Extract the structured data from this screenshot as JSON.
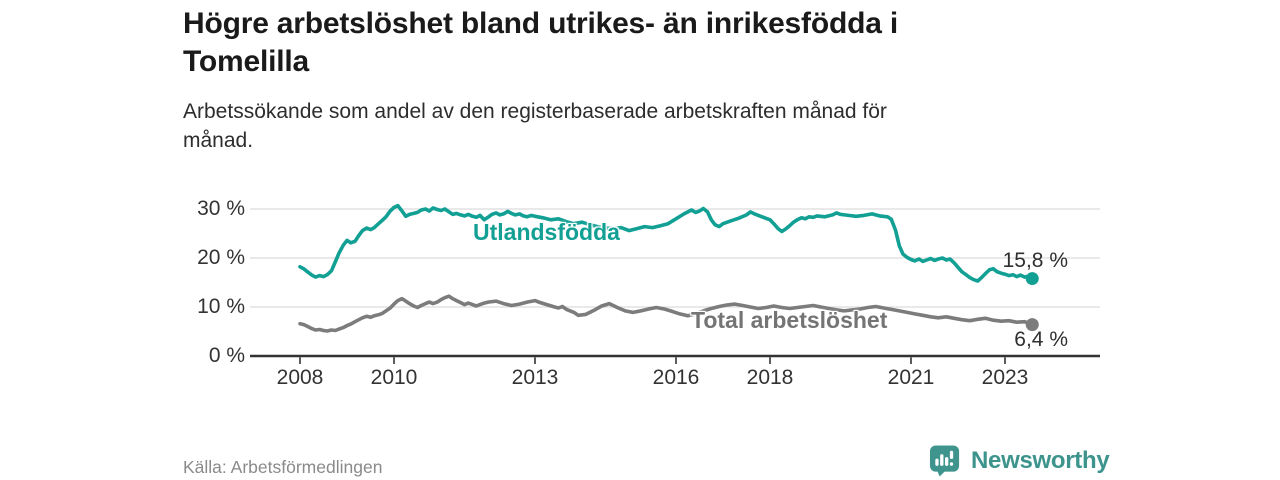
{
  "header": {
    "title_lines": [
      "Högre arbetslöshet bland utrikes- än inrikesfödda i",
      "Tomelilla"
    ],
    "subtitle_lines": [
      "Arbetssökande som andel av den registerbaserade arbetskraften månad för",
      "månad."
    ]
  },
  "footer": {
    "source": "Källa: Arbetsförmedlingen",
    "brand": "Newsworthy",
    "brand_icon": "newsworthy-bar-chart-speech-bubble"
  },
  "colors": {
    "accent_teal": "#12a095",
    "series_gray": "#7c7c7c",
    "logo_teal": "#3f948e",
    "grid": "#dcdcdc",
    "axis": "#333333",
    "text_dark": "#1a1a1a"
  },
  "chart_data": {
    "type": "line",
    "title": "Högre arbetslöshet bland utrikes- än inrikesfödda i Tomelilla",
    "subtitle": "Arbetssökande som andel av den registerbaserade arbetskraften månad för månad.",
    "grid": true,
    "legend_position": "inline-labels",
    "x_axis": {
      "ticks": [
        2008,
        2010,
        2013,
        2016,
        2018,
        2021,
        2023
      ],
      "range_years": [
        2006.9,
        2025.0
      ]
    },
    "y_axis": {
      "unit": "%",
      "ylim": [
        0,
        32
      ],
      "ticks": [
        {
          "value": 0,
          "label": "0 %"
        },
        {
          "value": 10,
          "label": "10 %"
        },
        {
          "value": 20,
          "label": "20 %"
        },
        {
          "value": 30,
          "label": "30 %"
        }
      ]
    },
    "series": [
      {
        "name": "Utlandsfödda",
        "color": "#12a095",
        "end_label": "15,8 %",
        "last_value": 15.8,
        "points": [
          [
            2008.0,
            18.2
          ],
          [
            2008.08,
            17.8
          ],
          [
            2008.17,
            17.1
          ],
          [
            2008.25,
            16.5
          ],
          [
            2008.33,
            16.1
          ],
          [
            2008.42,
            16.4
          ],
          [
            2008.5,
            16.2
          ],
          [
            2008.58,
            16.6
          ],
          [
            2008.67,
            17.4
          ],
          [
            2008.75,
            19.2
          ],
          [
            2008.83,
            21.0
          ],
          [
            2008.92,
            22.6
          ],
          [
            2009.0,
            23.6
          ],
          [
            2009.08,
            23.1
          ],
          [
            2009.17,
            23.4
          ],
          [
            2009.25,
            24.6
          ],
          [
            2009.33,
            25.6
          ],
          [
            2009.42,
            26.1
          ],
          [
            2009.5,
            25.8
          ],
          [
            2009.58,
            26.2
          ],
          [
            2009.67,
            27.0
          ],
          [
            2009.75,
            27.7
          ],
          [
            2009.83,
            28.4
          ],
          [
            2009.92,
            29.6
          ],
          [
            2010.0,
            30.3
          ],
          [
            2010.08,
            30.7
          ],
          [
            2010.17,
            29.6
          ],
          [
            2010.25,
            28.5
          ],
          [
            2010.33,
            28.9
          ],
          [
            2010.42,
            29.1
          ],
          [
            2010.5,
            29.3
          ],
          [
            2010.58,
            29.8
          ],
          [
            2010.67,
            30.0
          ],
          [
            2010.75,
            29.6
          ],
          [
            2010.83,
            30.2
          ],
          [
            2010.92,
            29.9
          ],
          [
            2011.0,
            29.7
          ],
          [
            2011.08,
            30.0
          ],
          [
            2011.17,
            29.4
          ],
          [
            2011.25,
            28.9
          ],
          [
            2011.33,
            29.1
          ],
          [
            2011.42,
            28.8
          ],
          [
            2011.5,
            28.6
          ],
          [
            2011.58,
            28.9
          ],
          [
            2011.67,
            28.5
          ],
          [
            2011.75,
            28.3
          ],
          [
            2011.83,
            28.7
          ],
          [
            2011.92,
            27.8
          ],
          [
            2012.0,
            28.3
          ],
          [
            2012.08,
            28.9
          ],
          [
            2012.17,
            29.2
          ],
          [
            2012.25,
            28.8
          ],
          [
            2012.33,
            29.0
          ],
          [
            2012.42,
            29.5
          ],
          [
            2012.5,
            29.1
          ],
          [
            2012.58,
            28.8
          ],
          [
            2012.67,
            29.0
          ],
          [
            2012.75,
            28.6
          ],
          [
            2012.83,
            28.4
          ],
          [
            2012.92,
            28.7
          ],
          [
            2013.0,
            28.5
          ],
          [
            2013.17,
            28.2
          ],
          [
            2013.33,
            27.8
          ],
          [
            2013.5,
            28.0
          ],
          [
            2013.67,
            27.4
          ],
          [
            2013.83,
            27.0
          ],
          [
            2014.0,
            27.3
          ],
          [
            2014.17,
            26.8
          ],
          [
            2014.33,
            26.4
          ],
          [
            2014.5,
            26.1
          ],
          [
            2014.67,
            26.0
          ],
          [
            2014.83,
            26.2
          ],
          [
            2015.0,
            25.6
          ],
          [
            2015.17,
            26.0
          ],
          [
            2015.33,
            26.4
          ],
          [
            2015.5,
            26.2
          ],
          [
            2015.67,
            26.6
          ],
          [
            2015.83,
            27.0
          ],
          [
            2016.0,
            28.0
          ],
          [
            2016.17,
            29.0
          ],
          [
            2016.33,
            29.8
          ],
          [
            2016.42,
            29.3
          ],
          [
            2016.5,
            29.6
          ],
          [
            2016.58,
            30.1
          ],
          [
            2016.67,
            29.4
          ],
          [
            2016.75,
            27.8
          ],
          [
            2016.83,
            26.8
          ],
          [
            2016.92,
            26.4
          ],
          [
            2017.0,
            27.0
          ],
          [
            2017.17,
            27.6
          ],
          [
            2017.33,
            28.1
          ],
          [
            2017.5,
            28.8
          ],
          [
            2017.58,
            29.4
          ],
          [
            2017.67,
            29.0
          ],
          [
            2017.83,
            28.4
          ],
          [
            2018.0,
            27.8
          ],
          [
            2018.08,
            27.0
          ],
          [
            2018.17,
            26.0
          ],
          [
            2018.25,
            25.4
          ],
          [
            2018.33,
            25.9
          ],
          [
            2018.42,
            26.6
          ],
          [
            2018.5,
            27.3
          ],
          [
            2018.58,
            27.8
          ],
          [
            2018.67,
            28.2
          ],
          [
            2018.75,
            28.0
          ],
          [
            2018.83,
            28.4
          ],
          [
            2018.92,
            28.3
          ],
          [
            2019.0,
            28.6
          ],
          [
            2019.17,
            28.4
          ],
          [
            2019.33,
            28.8
          ],
          [
            2019.42,
            29.2
          ],
          [
            2019.5,
            28.9
          ],
          [
            2019.67,
            28.7
          ],
          [
            2019.83,
            28.5
          ],
          [
            2020.0,
            28.7
          ],
          [
            2020.17,
            29.0
          ],
          [
            2020.33,
            28.6
          ],
          [
            2020.5,
            28.4
          ],
          [
            2020.58,
            27.9
          ],
          [
            2020.67,
            25.7
          ],
          [
            2020.75,
            22.5
          ],
          [
            2020.83,
            20.8
          ],
          [
            2020.92,
            20.1
          ],
          [
            2021.0,
            19.7
          ],
          [
            2021.08,
            19.4
          ],
          [
            2021.17,
            19.8
          ],
          [
            2021.25,
            19.3
          ],
          [
            2021.33,
            19.6
          ],
          [
            2021.42,
            19.9
          ],
          [
            2021.5,
            19.5
          ],
          [
            2021.58,
            19.8
          ],
          [
            2021.67,
            20.0
          ],
          [
            2021.75,
            19.6
          ],
          [
            2021.83,
            19.8
          ],
          [
            2021.92,
            19.0
          ],
          [
            2022.0,
            18.1
          ],
          [
            2022.08,
            17.2
          ],
          [
            2022.17,
            16.6
          ],
          [
            2022.25,
            16.0
          ],
          [
            2022.33,
            15.6
          ],
          [
            2022.42,
            15.3
          ],
          [
            2022.5,
            16.0
          ],
          [
            2022.58,
            16.8
          ],
          [
            2022.67,
            17.6
          ],
          [
            2022.75,
            17.8
          ],
          [
            2022.83,
            17.2
          ],
          [
            2022.92,
            16.9
          ],
          [
            2023.0,
            16.7
          ],
          [
            2023.08,
            16.4
          ],
          [
            2023.17,
            16.6
          ],
          [
            2023.25,
            16.2
          ],
          [
            2023.33,
            16.5
          ],
          [
            2023.42,
            16.1
          ],
          [
            2023.5,
            16.3
          ],
          [
            2023.58,
            15.8
          ]
        ]
      },
      {
        "name": "Total arbetslöshet",
        "color": "#7c7c7c",
        "end_label": "6,4 %",
        "last_value": 6.4,
        "points": [
          [
            2008.0,
            6.6
          ],
          [
            2008.08,
            6.4
          ],
          [
            2008.17,
            6.0
          ],
          [
            2008.25,
            5.6
          ],
          [
            2008.33,
            5.3
          ],
          [
            2008.42,
            5.4
          ],
          [
            2008.5,
            5.2
          ],
          [
            2008.58,
            5.1
          ],
          [
            2008.67,
            5.3
          ],
          [
            2008.75,
            5.2
          ],
          [
            2008.83,
            5.5
          ],
          [
            2008.92,
            5.8
          ],
          [
            2009.0,
            6.2
          ],
          [
            2009.08,
            6.5
          ],
          [
            2009.17,
            7.0
          ],
          [
            2009.25,
            7.4
          ],
          [
            2009.33,
            7.8
          ],
          [
            2009.42,
            8.1
          ],
          [
            2009.5,
            7.9
          ],
          [
            2009.58,
            8.2
          ],
          [
            2009.67,
            8.4
          ],
          [
            2009.75,
            8.7
          ],
          [
            2009.83,
            9.2
          ],
          [
            2009.92,
            9.8
          ],
          [
            2010.0,
            10.6
          ],
          [
            2010.08,
            11.3
          ],
          [
            2010.17,
            11.7
          ],
          [
            2010.25,
            11.2
          ],
          [
            2010.33,
            10.7
          ],
          [
            2010.42,
            10.2
          ],
          [
            2010.5,
            9.9
          ],
          [
            2010.58,
            10.3
          ],
          [
            2010.67,
            10.7
          ],
          [
            2010.75,
            11.0
          ],
          [
            2010.83,
            10.7
          ],
          [
            2010.92,
            11.0
          ],
          [
            2011.0,
            11.5
          ],
          [
            2011.08,
            11.9
          ],
          [
            2011.17,
            12.2
          ],
          [
            2011.25,
            11.7
          ],
          [
            2011.33,
            11.3
          ],
          [
            2011.42,
            10.9
          ],
          [
            2011.5,
            10.5
          ],
          [
            2011.58,
            10.8
          ],
          [
            2011.67,
            10.5
          ],
          [
            2011.75,
            10.2
          ],
          [
            2011.83,
            10.5
          ],
          [
            2011.92,
            10.8
          ],
          [
            2012.0,
            11.0
          ],
          [
            2012.17,
            11.2
          ],
          [
            2012.33,
            10.7
          ],
          [
            2012.5,
            10.3
          ],
          [
            2012.67,
            10.6
          ],
          [
            2012.83,
            11.0
          ],
          [
            2013.0,
            11.3
          ],
          [
            2013.08,
            11.0
          ],
          [
            2013.25,
            10.5
          ],
          [
            2013.42,
            10.0
          ],
          [
            2013.5,
            9.8
          ],
          [
            2013.58,
            10.1
          ],
          [
            2013.67,
            9.5
          ],
          [
            2013.83,
            8.9
          ],
          [
            2013.92,
            8.3
          ],
          [
            2014.08,
            8.5
          ],
          [
            2014.25,
            9.3
          ],
          [
            2014.42,
            10.2
          ],
          [
            2014.58,
            10.7
          ],
          [
            2014.75,
            9.9
          ],
          [
            2014.92,
            9.2
          ],
          [
            2015.08,
            8.9
          ],
          [
            2015.25,
            9.2
          ],
          [
            2015.42,
            9.6
          ],
          [
            2015.58,
            9.9
          ],
          [
            2015.75,
            9.6
          ],
          [
            2015.92,
            9.1
          ],
          [
            2016.08,
            8.6
          ],
          [
            2016.25,
            8.2
          ],
          [
            2016.42,
            8.6
          ],
          [
            2016.58,
            9.2
          ],
          [
            2016.75,
            9.7
          ],
          [
            2016.92,
            10.1
          ],
          [
            2017.08,
            10.4
          ],
          [
            2017.25,
            10.6
          ],
          [
            2017.42,
            10.3
          ],
          [
            2017.58,
            10.0
          ],
          [
            2017.75,
            9.7
          ],
          [
            2017.92,
            9.9
          ],
          [
            2018.08,
            10.2
          ],
          [
            2018.25,
            9.9
          ],
          [
            2018.42,
            9.7
          ],
          [
            2018.58,
            9.9
          ],
          [
            2018.75,
            10.1
          ],
          [
            2018.92,
            10.3
          ],
          [
            2019.08,
            10.0
          ],
          [
            2019.25,
            9.7
          ],
          [
            2019.42,
            9.4
          ],
          [
            2019.58,
            9.2
          ],
          [
            2019.75,
            9.4
          ],
          [
            2019.92,
            9.6
          ],
          [
            2020.08,
            9.9
          ],
          [
            2020.25,
            10.1
          ],
          [
            2020.42,
            9.8
          ],
          [
            2020.58,
            9.5
          ],
          [
            2020.75,
            9.2
          ],
          [
            2020.92,
            8.9
          ],
          [
            2021.08,
            8.6
          ],
          [
            2021.25,
            8.3
          ],
          [
            2021.42,
            8.0
          ],
          [
            2021.58,
            7.8
          ],
          [
            2021.75,
            8.0
          ],
          [
            2021.92,
            7.7
          ],
          [
            2022.08,
            7.4
          ],
          [
            2022.25,
            7.2
          ],
          [
            2022.42,
            7.5
          ],
          [
            2022.58,
            7.7
          ],
          [
            2022.75,
            7.3
          ],
          [
            2022.92,
            7.1
          ],
          [
            2023.08,
            7.2
          ],
          [
            2023.25,
            6.9
          ],
          [
            2023.42,
            7.0
          ],
          [
            2023.5,
            6.7
          ],
          [
            2023.58,
            6.4
          ]
        ]
      }
    ]
  }
}
